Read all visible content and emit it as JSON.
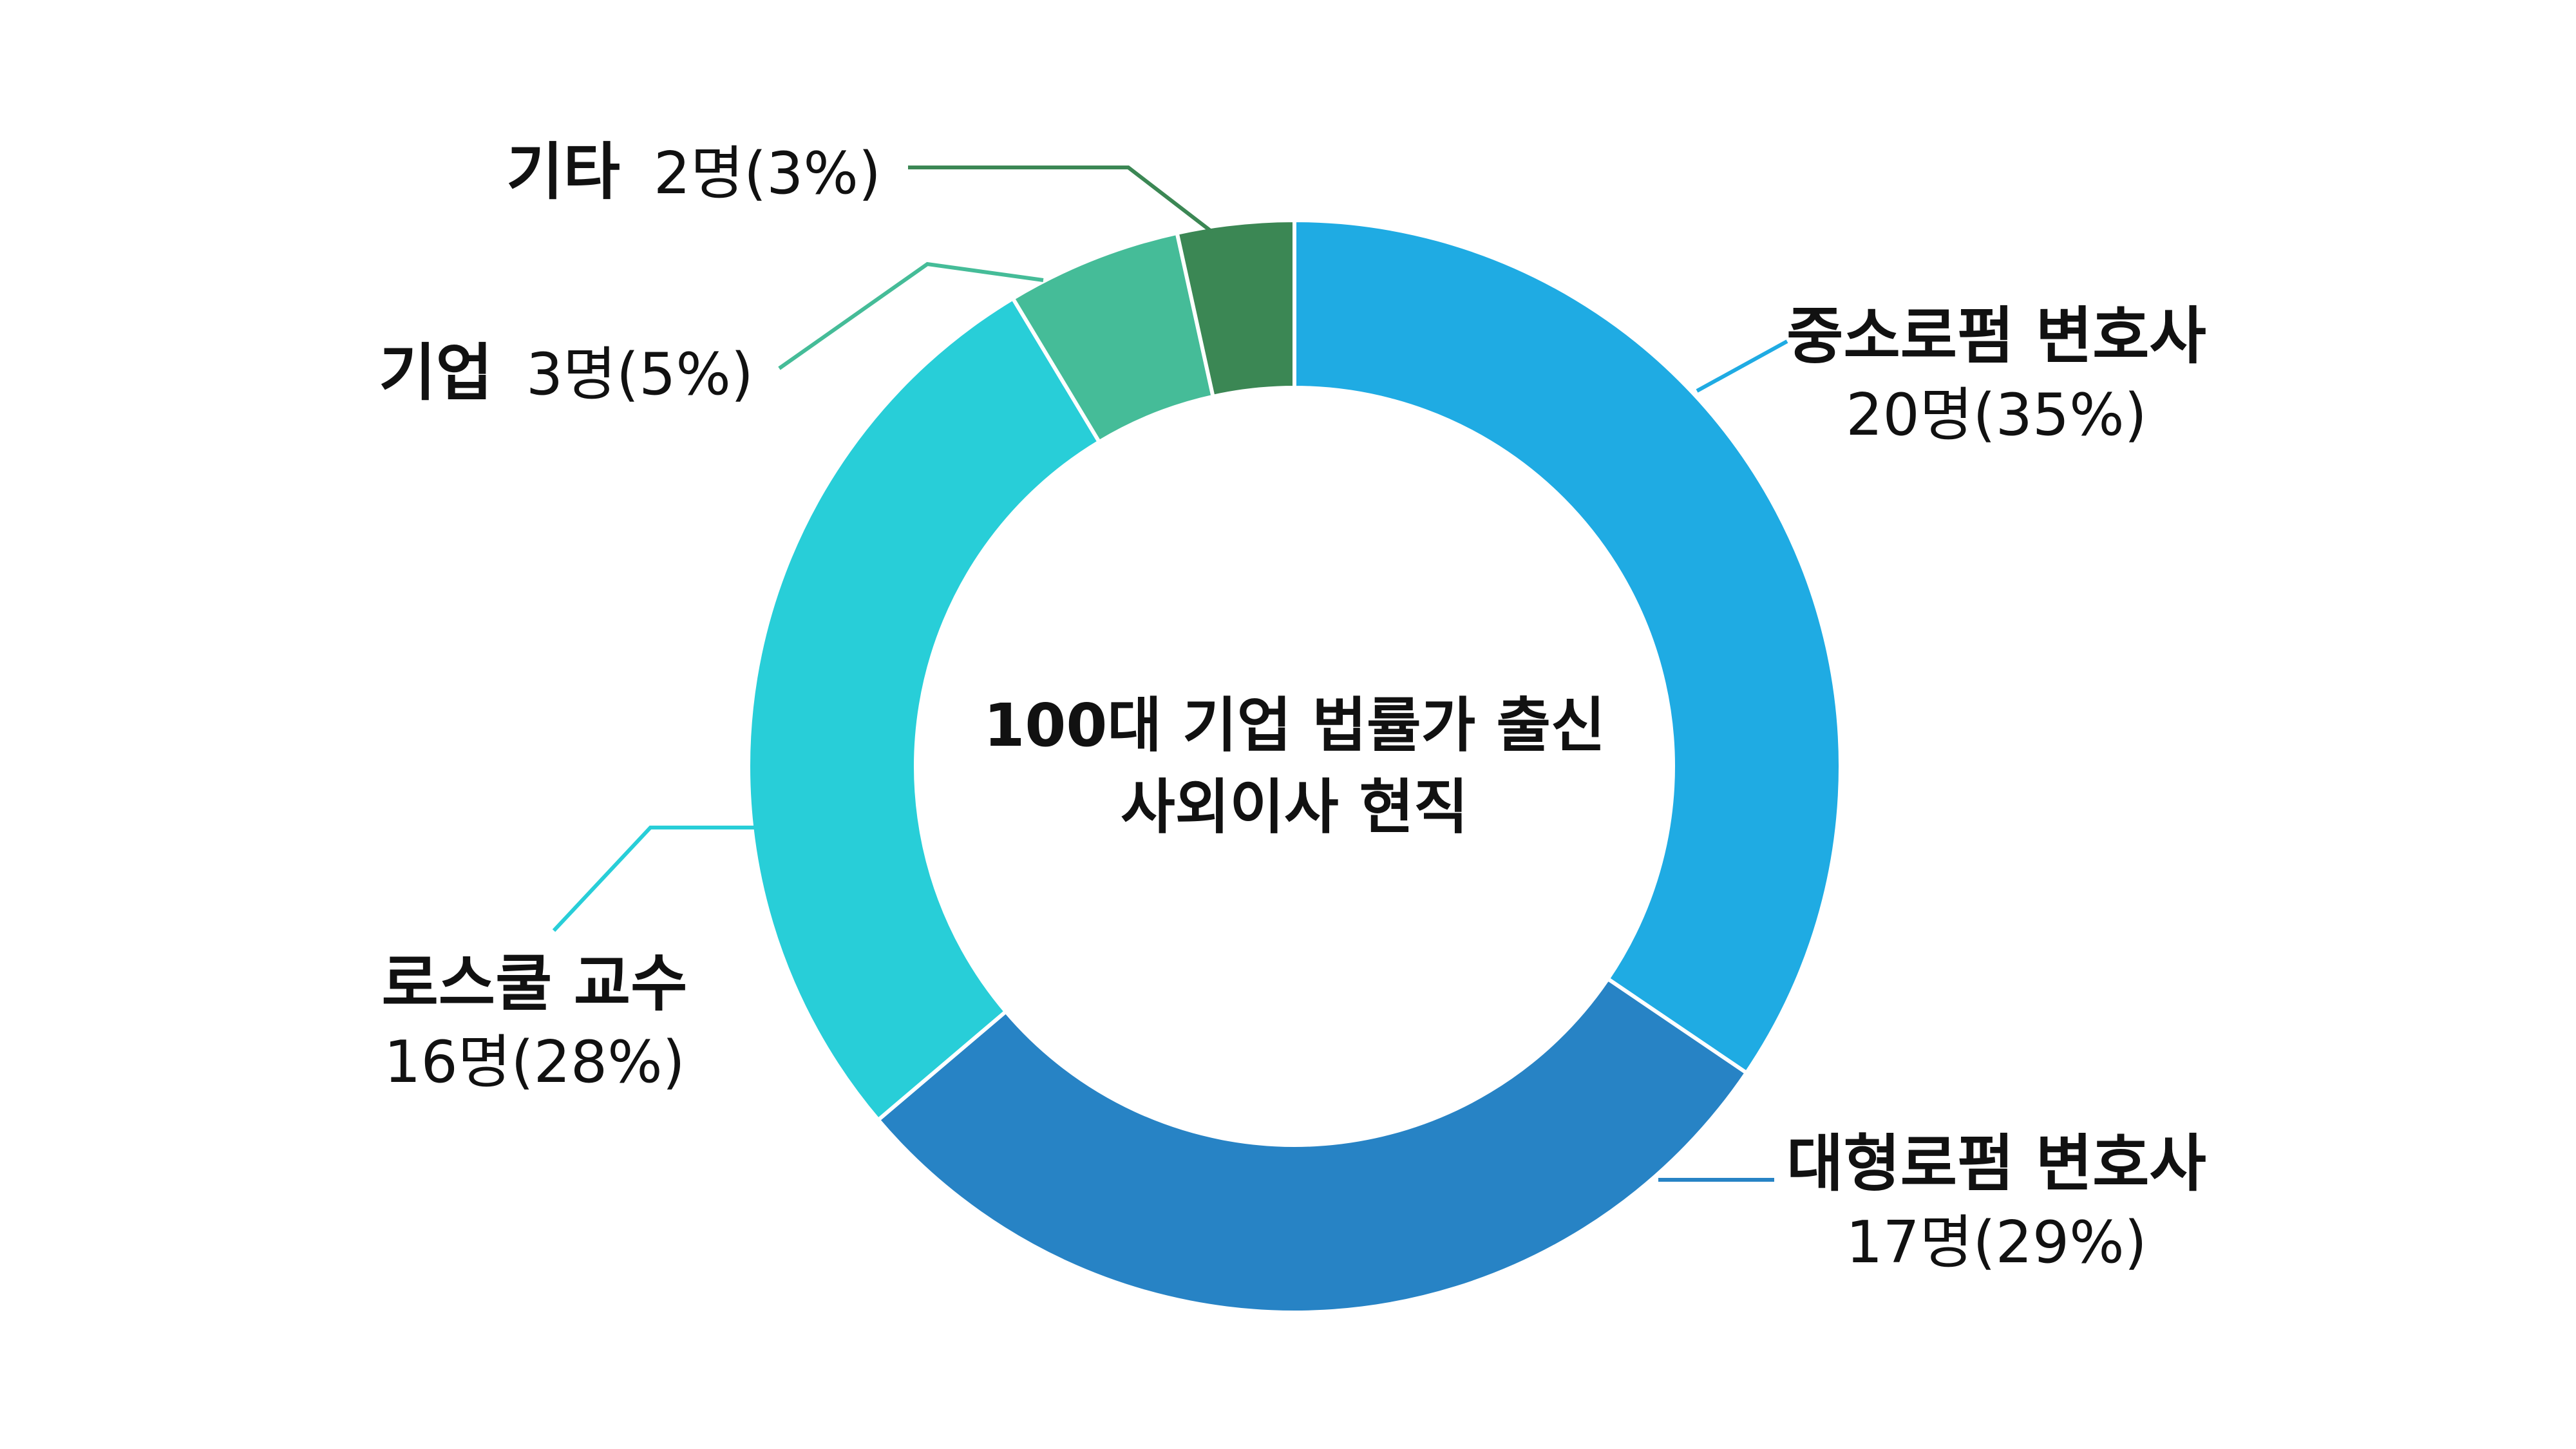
{
  "chart_data": {
    "type": "pie",
    "donut": true,
    "center_title": [
      "100대 기업 법률가 출신",
      "사외이사 현직"
    ],
    "slices": [
      {
        "name": "중소로펌 변호사",
        "count_label": "20명(35%)",
        "value": 20,
        "percent": 35,
        "color": "#1fabe3"
      },
      {
        "name": "대형로펌 변호사",
        "count_label": "17명(29%)",
        "value": 17,
        "percent": 29,
        "color": "#2783c5"
      },
      {
        "name": "로스쿨 교수",
        "count_label": "16명(28%)",
        "value": 16,
        "percent": 28,
        "color": "#28ced8"
      },
      {
        "name": "기업",
        "count_label": "3명(5%)",
        "value": 3,
        "percent": 5,
        "color": "#45bc98"
      },
      {
        "name": "기타",
        "count_label": "2명(3%)",
        "value": 2,
        "percent": 3,
        "color": "#3b8754"
      }
    ]
  }
}
